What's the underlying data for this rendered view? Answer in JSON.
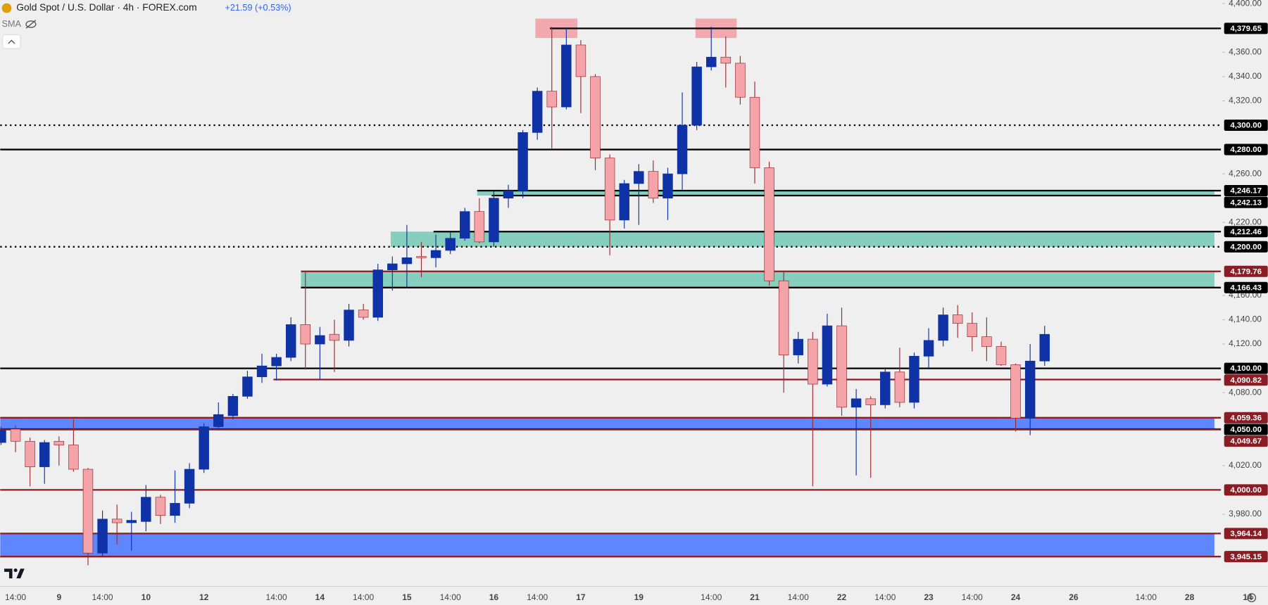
{
  "chart_data": {
    "type": "candlestick",
    "title": "Gold Spot / U.S. Dollar · 4h · FOREX.com",
    "subtitle": "+21.59 (+0.53%)",
    "indicator": "SMA",
    "bull_color": "#0f32a6",
    "bear_color": "#f4a3a8",
    "bear_wick_color": "#9b2a30",
    "ylim": [
      3924.6,
      4403.0
    ],
    "yticks": [
      {
        "value": 4400,
        "label": "4,400.00"
      },
      {
        "value": 4360,
        "label": "4,360.00"
      },
      {
        "value": 4340,
        "label": "4,340.00"
      },
      {
        "value": 4320,
        "label": "4,320.00"
      },
      {
        "value": 4260,
        "label": "4,260.00"
      },
      {
        "value": 4220,
        "label": "4,220.00"
      },
      {
        "value": 4160,
        "label": "4,160.00"
      },
      {
        "value": 4140,
        "label": "4,140.00"
      },
      {
        "value": 4120,
        "label": "4,120.00"
      },
      {
        "value": 4080,
        "label": "4,080.00"
      },
      {
        "value": 4020,
        "label": "4,020.00"
      },
      {
        "value": 3980,
        "label": "3,980.00"
      }
    ],
    "categories": [
      null,
      "14:00",
      null,
      null,
      "9",
      null,
      null,
      "14:00",
      null,
      null,
      "10",
      null,
      null,
      null,
      "12",
      null,
      null,
      null,
      null,
      "14:00",
      null,
      null,
      "14",
      null,
      null,
      "14:00",
      null,
      null,
      "15",
      null,
      null,
      "14:00",
      null,
      null,
      "16",
      null,
      null,
      "14:00",
      null,
      null,
      "17",
      null,
      null,
      null,
      "19",
      null,
      null,
      null,
      null,
      "14:00",
      null,
      null,
      "21",
      null,
      null,
      "14:00",
      null,
      null,
      "22",
      null,
      null,
      "14:00",
      null,
      null,
      "23",
      null,
      null,
      "14:00",
      null,
      null,
      "24",
      null,
      null,
      null,
      "26",
      null,
      null,
      null,
      null,
      "14:00",
      null,
      null,
      "28",
      null,
      null,
      null,
      "14"
    ],
    "open": [
      4039,
      4050,
      4040,
      4019,
      4040,
      4037,
      4017,
      3948,
      3976,
      3973,
      3974,
      3994,
      3979,
      3989,
      4017,
      4052,
      4061,
      4077,
      4093,
      4102,
      4109,
      4136,
      4120,
      4128,
      4123,
      4148,
      4142,
      4181,
      4186,
      4192,
      4191,
      4197,
      4207,
      4229,
      4204,
      4240,
      4246,
      4294,
      4328,
      4315,
      4366,
      4340,
      4273,
      4222,
      4252,
      4262,
      4240,
      4260,
      4300,
      4348,
      4356,
      4351,
      4323,
      4265,
      4172,
      4111,
      4124,
      4087,
      4135,
      4068,
      4075,
      4070,
      4097,
      4072,
      4110,
      4123,
      4144,
      4137,
      4126,
      4118,
      4103,
      4059,
      4106,
      null,
      null,
      null,
      null,
      null,
      null,
      null,
      null,
      null,
      null,
      null,
      null,
      null,
      null
    ],
    "high": [
      4052,
      4053,
      4043,
      4041,
      4044,
      4058,
      4018,
      3983,
      3988,
      3982,
      4004,
      3996,
      4016,
      4022,
      4055,
      4072,
      4079,
      4098,
      4112,
      4112,
      4142,
      4180,
      4134,
      4140,
      4153,
      4153,
      4186,
      4192,
      4218,
      4204,
      4210,
      4212,
      4232,
      4240,
      4246,
      4251,
      4296,
      4331,
      4381,
      4380,
      4370,
      4342,
      4276,
      4255,
      4268,
      4271,
      4265,
      4327,
      4352,
      4381,
      4373,
      4357,
      4336,
      4270,
      4180,
      4130,
      4130,
      4145,
      4150,
      4083,
      4077,
      4100,
      4117,
      4113,
      4133,
      4150,
      4152,
      4146,
      4142,
      4122,
      4104,
      4120,
      4135,
      null,
      null,
      null,
      null,
      null,
      null,
      null,
      null,
      null,
      null,
      null,
      null,
      null,
      null
    ],
    "low": [
      4037,
      4031,
      4003,
      4005,
      4020,
      4015,
      3938,
      3945,
      3955,
      3950,
      3966,
      3972,
      3973,
      3985,
      4014,
      4049,
      4058,
      4075,
      4088,
      4090,
      4106,
      4099,
      4091,
      4097,
      4118,
      4140,
      4139,
      4164,
      4166,
      4175,
      4183,
      4194,
      4205,
      4203,
      4200,
      4232,
      4240,
      4288,
      4281,
      4313,
      4310,
      4263,
      4193,
      4215,
      4218,
      4236,
      4222,
      4247,
      4296,
      4345,
      4331,
      4317,
      4252,
      4168,
      4080,
      4104,
      4003,
      4085,
      4061,
      4012,
      4010,
      4067,
      4068,
      4067,
      4100,
      4118,
      4125,
      4114,
      4106,
      4102,
      4048,
      4045,
      4102,
      null,
      null,
      null,
      null,
      null,
      null,
      null,
      null,
      null,
      null,
      null,
      null,
      null,
      null
    ],
    "close": [
      4049,
      4040,
      4019,
      4039,
      4037,
      4017,
      3948,
      3976,
      3973,
      3975,
      3994,
      3979,
      3989,
      4017,
      4052,
      4062,
      4077,
      4093,
      4102,
      4109,
      4136,
      4120,
      4127,
      4123,
      4148,
      4142,
      4181,
      4186,
      4191,
      4191,
      4197,
      4207,
      4229,
      4204,
      4240,
      4246,
      4294,
      4328,
      4315,
      4366,
      4340,
      4273,
      4222,
      4252,
      4262,
      4240,
      4260,
      4300,
      4348,
      4356,
      4351,
      4323,
      4265,
      4172,
      4111,
      4124,
      4087,
      4135,
      4068,
      4075,
      4070,
      4097,
      4072,
      4110,
      4123,
      4144,
      4137,
      4126,
      4118,
      4103,
      4059,
      4106,
      4128,
      null,
      null,
      null,
      null,
      null,
      null,
      null,
      null,
      null,
      null,
      null,
      null,
      null,
      null
    ],
    "levels": [
      {
        "value": 4379.65,
        "label": "4,379.65",
        "color": "#000000",
        "style": "solid"
      },
      {
        "value": 4300,
        "label": "4,300.00",
        "color": "#000000",
        "style": "dotted"
      },
      {
        "value": 4280,
        "label": "4,280.00",
        "color": "#000000",
        "style": "solid"
      },
      {
        "value": 4246.17,
        "label": "4,246.17",
        "color": "#000000",
        "style": "solid"
      },
      {
        "value": 4242.13,
        "label": "4,242.13",
        "color": "#000000",
        "style": "solid"
      },
      {
        "value": 4212.46,
        "label": "4,212.46",
        "color": "#000000",
        "style": "solid"
      },
      {
        "value": 4200,
        "label": "4,200.00",
        "color": "#000000",
        "style": "dotted"
      },
      {
        "value": 4179.76,
        "label": "4,179.76",
        "color": "#8b1c24",
        "style": "solid"
      },
      {
        "value": 4166.43,
        "label": "4,166.43",
        "color": "#000000",
        "style": "solid"
      },
      {
        "value": 4100,
        "label": "4,100.00",
        "color": "#000000",
        "style": "solid"
      },
      {
        "value": 4090.82,
        "label": "4,090.82",
        "color": "#8b1c24",
        "style": "solid"
      },
      {
        "value": 4059.36,
        "label": "4,059.36",
        "color": "#8b1c24",
        "style": "solid"
      },
      {
        "value": 4050,
        "label": "4,050.00",
        "color": "#000000",
        "style": "solid"
      },
      {
        "value": 4049.67,
        "label": "4,049.67",
        "color": "#8b1c24",
        "style": "solid"
      },
      {
        "value": 4000,
        "label": "4,000.00",
        "color": "#8b1c24",
        "style": "solid"
      },
      {
        "value": 3964.14,
        "label": "3,964.14",
        "color": "#8b1c24",
        "style": "solid"
      },
      {
        "value": 3945.15,
        "label": "3,945.15",
        "color": "#8b1c24",
        "style": "solid"
      }
    ],
    "zones": [
      {
        "from": 4242.13,
        "to": 4246.17,
        "color": "#7fcbbb"
      },
      {
        "from": 4200,
        "to": 4212.46,
        "color": "#7fcbbb"
      },
      {
        "from": 4166.43,
        "to": 4179.76,
        "color": "#7fcbbb"
      },
      {
        "from": 4049.67,
        "to": 4059.36,
        "color": "#5580ff"
      },
      {
        "from": 3945.15,
        "to": 3964.14,
        "color": "#5580ff"
      }
    ]
  }
}
